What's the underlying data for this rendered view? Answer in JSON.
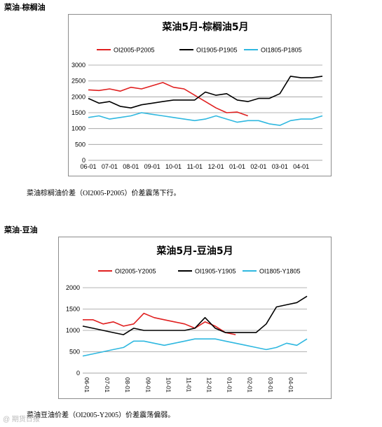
{
  "section1": {
    "heading": "菜油-棕榈油",
    "caption": "菜油棕榈油价差（OI2005-P2005）价差震荡下行。"
  },
  "section2": {
    "heading": "菜油-豆油",
    "caption": "菜油豆油价差（OI2005-Y2005）价差震荡偏弱。"
  },
  "watermark": "@ 期货日报",
  "chart_data": [
    {
      "type": "line",
      "title": "菜油5月-棕榈油5月",
      "legend_position": "top",
      "grid": true,
      "xlabel": "",
      "ylabel": "",
      "ylim": [
        0,
        3000
      ],
      "yticks": [
        0,
        500,
        1000,
        1500,
        2000,
        2500,
        3000
      ],
      "tick_labels": [
        "06-01",
        "07-01",
        "08-01",
        "09-01",
        "10-01",
        "11-01",
        "12-01",
        "01-01",
        "02-01",
        "03-01",
        "04-01"
      ],
      "x": [
        "06-01",
        "06-15",
        "07-01",
        "07-15",
        "08-01",
        "08-15",
        "09-01",
        "09-15",
        "10-01",
        "10-15",
        "11-01",
        "11-15",
        "12-01",
        "12-15",
        "01-01",
        "01-15",
        "02-01",
        "02-15",
        "03-01",
        "03-15",
        "04-01",
        "04-15",
        "05-01"
      ],
      "series": [
        {
          "name": "OI2005-P2005",
          "color": "#e02020",
          "values": [
            2220,
            2200,
            2250,
            2180,
            2300,
            2250,
            2350,
            2450,
            2300,
            2250,
            2050,
            1850,
            1650,
            1500,
            1520,
            1400,
            null,
            null,
            null,
            null,
            null,
            null,
            null
          ]
        },
        {
          "name": "OI1905-P1905",
          "color": "#000000",
          "values": [
            1950,
            1800,
            1850,
            1700,
            1650,
            1750,
            1800,
            1850,
            1900,
            1900,
            1900,
            2150,
            2050,
            2100,
            1900,
            1850,
            1950,
            1950,
            2100,
            2650,
            2600,
            2600,
            2650
          ]
        },
        {
          "name": "OI1805-P1805",
          "color": "#2fb8e0",
          "values": [
            1350,
            1400,
            1300,
            1350,
            1400,
            1500,
            1450,
            1400,
            1350,
            1300,
            1250,
            1300,
            1400,
            1300,
            1200,
            1250,
            1250,
            1150,
            1100,
            1250,
            1300,
            1300,
            1400
          ]
        }
      ]
    },
    {
      "type": "line",
      "title": "菜油5月-豆油5月",
      "legend_position": "top",
      "grid": true,
      "xlabel": "",
      "ylabel": "",
      "ylim": [
        0,
        2000
      ],
      "yticks": [
        0,
        500,
        1000,
        1500,
        2000
      ],
      "tick_labels": [
        "06-01",
        "07-01",
        "08-01",
        "09-01",
        "10-01",
        "11-01",
        "12-01",
        "01-01",
        "02-01",
        "03-01",
        "04-01"
      ],
      "x": [
        "06-01",
        "06-15",
        "07-01",
        "07-15",
        "08-01",
        "08-15",
        "09-01",
        "09-15",
        "10-01",
        "10-15",
        "11-01",
        "11-15",
        "12-01",
        "12-15",
        "01-01",
        "01-15",
        "02-01",
        "02-15",
        "03-01",
        "03-15",
        "04-01",
        "04-15",
        "05-01"
      ],
      "series": [
        {
          "name": "OI2005-Y2005",
          "color": "#e02020",
          "values": [
            1250,
            1250,
            1150,
            1200,
            1100,
            1150,
            1400,
            1300,
            1250,
            1200,
            1150,
            1050,
            1200,
            1100,
            950,
            900,
            null,
            null,
            null,
            null,
            null,
            null,
            null
          ]
        },
        {
          "name": "OI1905-Y1905",
          "color": "#000000",
          "values": [
            1100,
            1050,
            1000,
            950,
            900,
            1050,
            1000,
            1000,
            1000,
            1000,
            1000,
            1050,
            1300,
            1050,
            950,
            950,
            950,
            950,
            1150,
            1550,
            1600,
            1650,
            1800
          ]
        },
        {
          "name": "OI1805-Y1805",
          "color": "#2fb8e0",
          "values": [
            400,
            450,
            500,
            550,
            600,
            750,
            750,
            700,
            650,
            700,
            750,
            800,
            800,
            800,
            750,
            700,
            650,
            600,
            550,
            600,
            700,
            650,
            800
          ]
        }
      ]
    }
  ]
}
